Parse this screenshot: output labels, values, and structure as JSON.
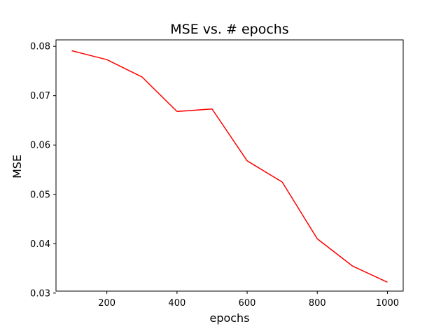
{
  "chart_data": {
    "type": "line",
    "title": "MSE vs. # epochs",
    "xlabel": "epochs",
    "ylabel": "MSE",
    "xlim": [
      55,
      1045
    ],
    "ylim": [
      0.0304,
      0.0813
    ],
    "xticks": [
      200,
      400,
      600,
      800,
      1000
    ],
    "yticks": [
      0.03,
      0.04,
      0.05,
      0.06,
      0.07,
      0.08
    ],
    "xtick_labels": [
      "200",
      "400",
      "600",
      "800",
      "1000"
    ],
    "ytick_labels": [
      "0.03",
      "0.04",
      "0.05",
      "0.06",
      "0.07",
      "0.08"
    ],
    "grid": false,
    "series": [
      {
        "color": "#ff0000",
        "x": [
          100,
          200,
          300,
          400,
          500,
          600,
          700,
          800,
          900,
          1000
        ],
        "y": [
          0.0791,
          0.0773,
          0.0738,
          0.0668,
          0.0673,
          0.0568,
          0.0525,
          0.041,
          0.0355,
          0.0322
        ]
      }
    ]
  }
}
